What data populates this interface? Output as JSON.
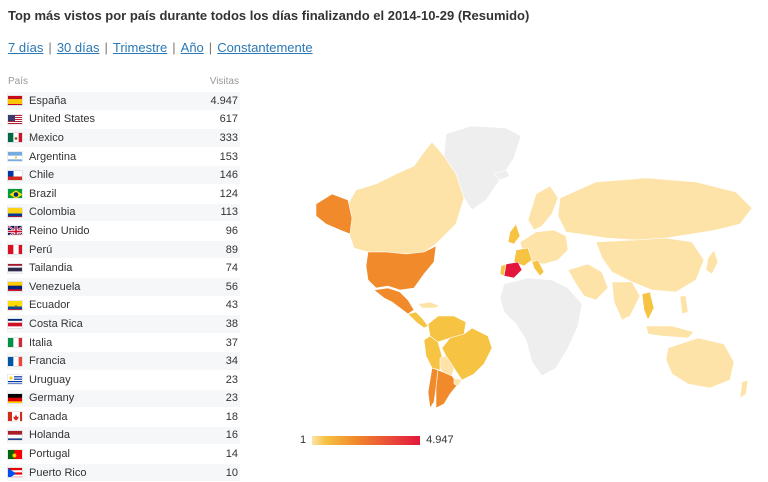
{
  "title": "Top más vistos por país durante todos los días finalizando el 2014-10-29 (Resumido)",
  "periods": [
    "7 días",
    "30 días",
    "Trimestre",
    "Año",
    "Constantemente"
  ],
  "table": {
    "col_country": "País",
    "col_visits": "Visitas",
    "rows": [
      {
        "country": "España",
        "visits": "4.947",
        "flag": "es"
      },
      {
        "country": "United States",
        "visits": "617",
        "flag": "us"
      },
      {
        "country": "Mexico",
        "visits": "333",
        "flag": "mx"
      },
      {
        "country": "Argentina",
        "visits": "153",
        "flag": "ar"
      },
      {
        "country": "Chile",
        "visits": "146",
        "flag": "cl"
      },
      {
        "country": "Brazil",
        "visits": "124",
        "flag": "br"
      },
      {
        "country": "Colombia",
        "visits": "113",
        "flag": "co"
      },
      {
        "country": "Reino Unido",
        "visits": "96",
        "flag": "gb"
      },
      {
        "country": "Perú",
        "visits": "89",
        "flag": "pe"
      },
      {
        "country": "Tailandia",
        "visits": "74",
        "flag": "th"
      },
      {
        "country": "Venezuela",
        "visits": "56",
        "flag": "ve"
      },
      {
        "country": "Ecuador",
        "visits": "43",
        "flag": "ec"
      },
      {
        "country": "Costa Rica",
        "visits": "38",
        "flag": "cr"
      },
      {
        "country": "Italia",
        "visits": "37",
        "flag": "it"
      },
      {
        "country": "Francia",
        "visits": "34",
        "flag": "fr"
      },
      {
        "country": "Uruguay",
        "visits": "23",
        "flag": "uy"
      },
      {
        "country": "Germany",
        "visits": "23",
        "flag": "de"
      },
      {
        "country": "Canada",
        "visits": "18",
        "flag": "ca"
      },
      {
        "country": "Holanda",
        "visits": "16",
        "flag": "nl"
      },
      {
        "country": "Portugal",
        "visits": "14",
        "flag": "pt"
      },
      {
        "country": "Puerto Rico",
        "visits": "10",
        "flag": "pr"
      }
    ]
  },
  "legend": {
    "min": "1",
    "max": "4.947"
  },
  "colors": {
    "link": "#2a78b5",
    "low": "#fde3a8",
    "mid": "#f08a2a",
    "high": "#e3173b",
    "no_data": "#eeeeee"
  }
}
